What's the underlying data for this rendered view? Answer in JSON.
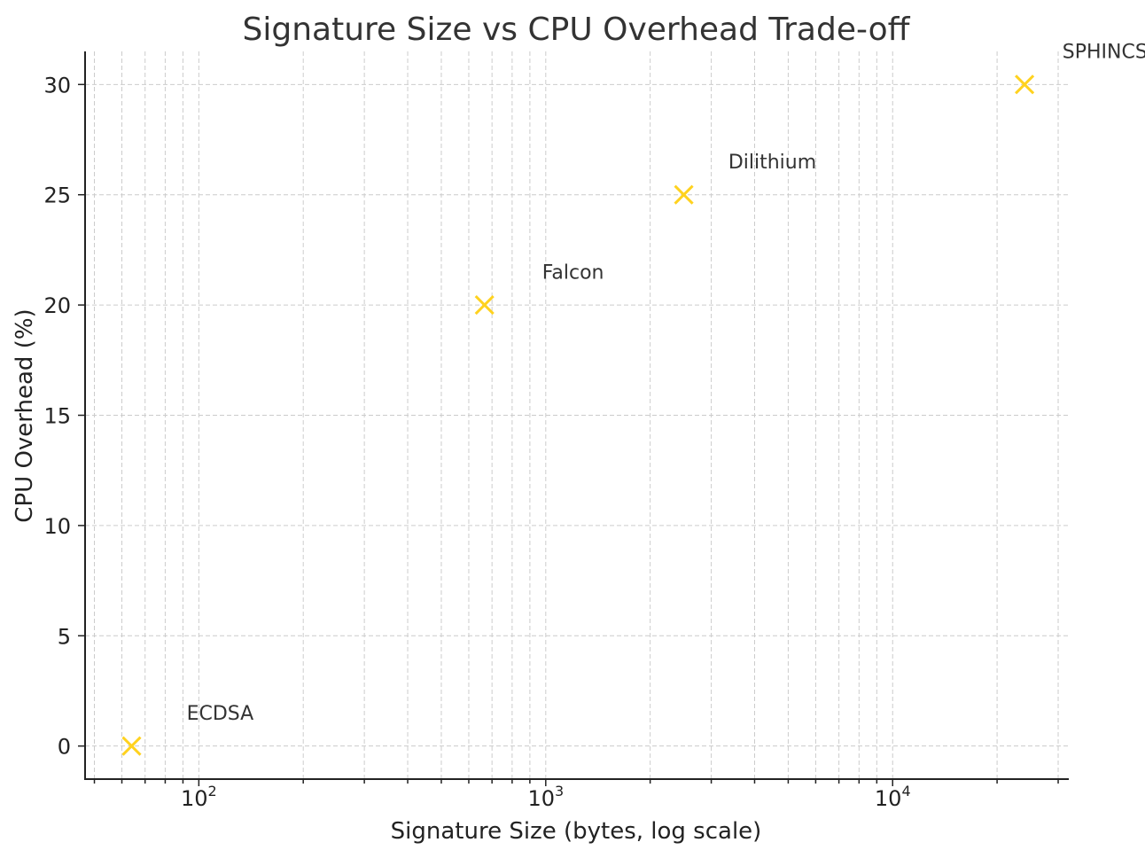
{
  "chart_data": {
    "type": "scatter",
    "title": "Signature Size vs CPU Overhead Trade-off",
    "xlabel": "Signature Size (bytes, log scale)",
    "ylabel": "CPU Overhead (%)",
    "x_scale": "log",
    "xlim": [
      47,
      32000
    ],
    "ylim": [
      -1.5,
      31.5
    ],
    "x_ticks": [
      {
        "value": 100,
        "base": "10",
        "exp": "2"
      },
      {
        "value": 1000,
        "base": "10",
        "exp": "3"
      },
      {
        "value": 10000,
        "base": "10",
        "exp": "4"
      }
    ],
    "y_ticks": [
      {
        "value": 0,
        "label": "0"
      },
      {
        "value": 5,
        "label": "5"
      },
      {
        "value": 10,
        "label": "10"
      },
      {
        "value": 15,
        "label": "15"
      },
      {
        "value": 20,
        "label": "20"
      },
      {
        "value": 25,
        "label": "25"
      },
      {
        "value": 30,
        "label": "30"
      }
    ],
    "grid": true,
    "marker": "x",
    "marker_color": "#FFD21F",
    "points": [
      {
        "label": "ECDSA",
        "x": 64,
        "y": 0
      },
      {
        "label": "Falcon",
        "x": 666,
        "y": 20
      },
      {
        "label": "Dilithium",
        "x": 2500,
        "y": 25
      },
      {
        "label": "SPHINCS+",
        "x": 24000,
        "y": 30
      }
    ]
  }
}
